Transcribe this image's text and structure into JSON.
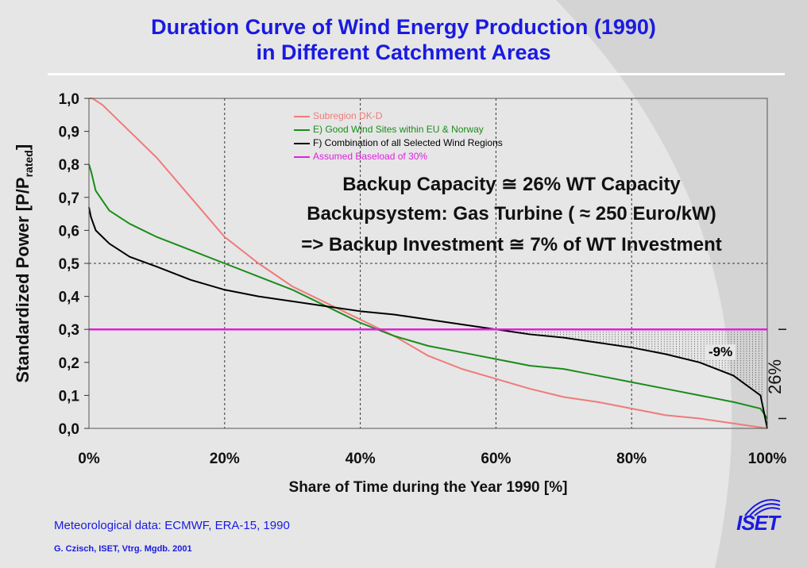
{
  "title": {
    "line1": "Duration Curve of Wind Energy Production (1990)",
    "line2": "in Different Catchment Areas"
  },
  "annotations": {
    "line1": "Backup Capacity ≅ 26% WT Capacity",
    "line2": "Backupsystem: Gas Turbine ( ≈ 250 Euro/kW)",
    "line3": "=> Backup Investment ≅ 7% of WT Investment",
    "pct_label": "-9%",
    "span_label": "26%"
  },
  "footer": {
    "met": "Meteorological data: ECMWF, ERA-15, 1990",
    "credit": "G. Czisch, ISET, Vtrg. Mgdb. 2001",
    "logo_text": "ISET"
  },
  "colors": {
    "subregion": "#f07a7a",
    "good_sites": "#1a8c1a",
    "combination": "#000000",
    "baseload": "#e020e0",
    "title": "#1a1ae0"
  },
  "chart_data": {
    "type": "line",
    "xlabel": "Share of Time during the Year 1990 [%]",
    "ylabel_main": "Standardized Power [P/P",
    "ylabel_sub": "rated",
    "ylabel_end": "]",
    "xlim": [
      0,
      100
    ],
    "ylim": [
      0,
      1.0
    ],
    "xticks": [
      0,
      20,
      40,
      60,
      80,
      100
    ],
    "xtick_labels": [
      "0%",
      "20%",
      "40%",
      "60%",
      "80%",
      "100%"
    ],
    "yticks": [
      0,
      0.1,
      0.2,
      0.3,
      0.4,
      0.5,
      0.6,
      0.7,
      0.8,
      0.9,
      1.0
    ],
    "ytick_labels": [
      "0,0",
      "0,1",
      "0,2",
      "0,3",
      "0,4",
      "0,5",
      "0,6",
      "0,7",
      "0,8",
      "0,9",
      "1,0"
    ],
    "grid": true,
    "legend_position": "top-center",
    "series": [
      {
        "name": "Subregion DK-D",
        "color": "#f07a7a",
        "x": [
          0,
          0.5,
          2,
          5,
          10,
          15,
          20,
          25,
          30,
          35,
          40,
          45,
          50,
          55,
          60,
          65,
          70,
          75,
          80,
          85,
          90,
          95,
          100
        ],
        "y": [
          1.0,
          1.0,
          0.98,
          0.92,
          0.82,
          0.7,
          0.58,
          0.5,
          0.43,
          0.38,
          0.33,
          0.28,
          0.22,
          0.18,
          0.15,
          0.12,
          0.095,
          0.08,
          0.06,
          0.04,
          0.03,
          0.015,
          0.0
        ]
      },
      {
        "name": "E) Good Wind Sites within EU & Norway",
        "color": "#1a8c1a",
        "x": [
          0,
          0.3,
          1,
          3,
          6,
          10,
          15,
          20,
          25,
          30,
          35,
          40,
          45,
          50,
          55,
          60,
          65,
          70,
          75,
          80,
          85,
          90,
          95,
          99,
          100
        ],
        "y": [
          0.8,
          0.78,
          0.72,
          0.66,
          0.62,
          0.58,
          0.54,
          0.5,
          0.46,
          0.42,
          0.37,
          0.32,
          0.28,
          0.25,
          0.23,
          0.21,
          0.19,
          0.18,
          0.16,
          0.14,
          0.12,
          0.1,
          0.08,
          0.06,
          0.03
        ]
      },
      {
        "name": "F) Combination of all Selected Wind Regions",
        "color": "#000000",
        "x": [
          0,
          0.3,
          1,
          3,
          6,
          10,
          15,
          20,
          25,
          30,
          35,
          40,
          45,
          50,
          55,
          60,
          65,
          70,
          75,
          80,
          85,
          90,
          95,
          99,
          100
        ],
        "y": [
          0.67,
          0.64,
          0.6,
          0.56,
          0.52,
          0.49,
          0.45,
          0.42,
          0.4,
          0.385,
          0.37,
          0.355,
          0.345,
          0.33,
          0.315,
          0.3,
          0.285,
          0.275,
          0.26,
          0.245,
          0.225,
          0.2,
          0.16,
          0.1,
          0.0
        ]
      },
      {
        "name": "Assumed Baseload of 30%",
        "color": "#e020e0",
        "x": [
          0,
          100
        ],
        "y": [
          0.3,
          0.3
        ]
      }
    ]
  }
}
